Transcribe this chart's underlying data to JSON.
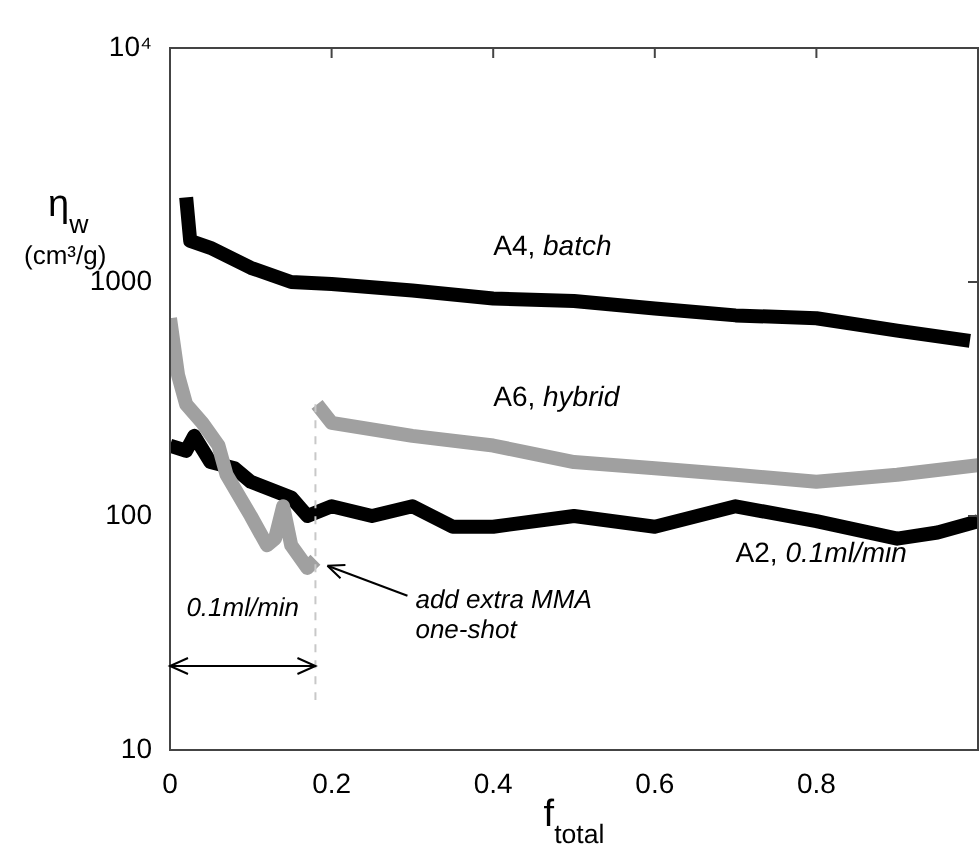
{
  "chart_data": {
    "type": "line",
    "xlabel": "f$_{total}$",
    "ylabel": "η$_{w}$ (cm³/g)",
    "log": "y",
    "xlim": [
      0,
      1
    ],
    "xticks": [
      0,
      0.2,
      0.4,
      0.6,
      0.8
    ],
    "ylim": [
      10,
      10000
    ],
    "yticks": [
      10,
      100,
      1000,
      {
        "value": 10000,
        "label": "10⁴"
      }
    ],
    "grid": false,
    "legend": false,
    "marker": "none",
    "line_style": "solid",
    "series": [
      {
        "name": "A4, batch",
        "color": "#000000",
        "x": [
          0.02,
          0.025,
          0.05,
          0.1,
          0.15,
          0.2,
          0.3,
          0.4,
          0.5,
          0.6,
          0.7,
          0.8,
          0.9,
          0.99
        ],
        "values": [
          2300,
          1500,
          1400,
          1150,
          1000,
          980,
          920,
          850,
          830,
          770,
          720,
          700,
          620,
          560
        ]
      },
      {
        "name": "A6, hybrid",
        "color": "#a0a0a0",
        "x": [
          0,
          0.01,
          0.02,
          0.04,
          0.06,
          0.07,
          0.1,
          0.12,
          0.13,
          0.14,
          0.15,
          0.17,
          0.18,
          0.181,
          0.182,
          0.2,
          0.3,
          0.4,
          0.5,
          0.6,
          0.7,
          0.8,
          0.9,
          1
        ],
        "values": [
          700,
          400,
          300,
          250,
          200,
          150,
          100,
          75,
          80,
          110,
          75,
          60,
          65,
          null,
          300,
          250,
          220,
          200,
          170,
          160,
          150,
          140,
          150,
          165
        ]
      },
      {
        "name": "A2, 0.1ml/min",
        "color": "#000000",
        "x": [
          0,
          0.02,
          0.03,
          0.05,
          0.08,
          0.1,
          0.15,
          0.17,
          0.2,
          0.25,
          0.3,
          0.35,
          0.4,
          0.5,
          0.6,
          0.7,
          0.8,
          0.9,
          0.95,
          1
        ],
        "values": [
          200,
          190,
          220,
          170,
          160,
          140,
          120,
          100,
          110,
          100,
          110,
          90,
          90,
          100,
          90,
          110,
          95,
          80,
          85,
          95
        ]
      }
    ],
    "ref_lines": [
      {
        "axis": "x",
        "value": 0.18,
        "color": "#c8c8c8",
        "line_style": "dashed"
      }
    ],
    "annotations": [
      "0.1ml/min",
      {
        "text": "add extra MMA one-shot",
        "x": 0.18,
        "y": 65
      }
    ]
  }
}
